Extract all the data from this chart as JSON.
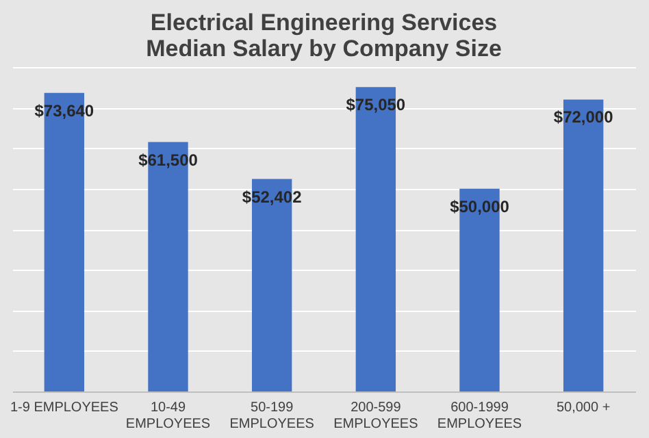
{
  "chart_data": {
    "type": "bar",
    "title": "Electrical Engineering Services Median Salary by Company Size",
    "categories": [
      "1-9 EMPLOYEES",
      "10-49 EMPLOYEES",
      "50-199 EMPLOYEES",
      "200-599 EMPLOYEES",
      "600-1999 EMPLOYEES",
      "50,000 +"
    ],
    "values": [
      73640,
      61500,
      52402,
      75050,
      50000,
      72000
    ],
    "value_labels": [
      "$73,640",
      "$61,500",
      "$52,402",
      "$75,050",
      "$50,000",
      "$72,000"
    ],
    "color": "#4472c4",
    "grid": "y",
    "tick_labels": "x"
  }
}
